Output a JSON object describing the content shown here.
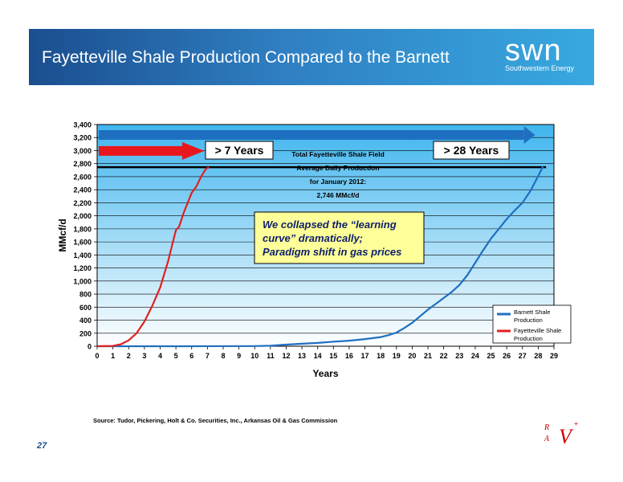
{
  "header": {
    "title": "Fayetteville Shale Production Compared to the Barnett",
    "logo_mark": "swn",
    "logo_sub": "Southwestern Energy"
  },
  "chart_data": {
    "type": "line",
    "xlabel": "Years",
    "ylabel": "MMcf/d",
    "xlim": [
      0,
      29
    ],
    "ylim": [
      0,
      3400
    ],
    "x_ticks": [
      0,
      1,
      2,
      3,
      4,
      5,
      6,
      7,
      8,
      9,
      10,
      11,
      12,
      13,
      14,
      15,
      16,
      17,
      18,
      19,
      20,
      21,
      22,
      23,
      24,
      25,
      26,
      27,
      28,
      29
    ],
    "y_ticks": [
      0,
      200,
      400,
      600,
      800,
      1000,
      1200,
      1400,
      1600,
      1800,
      2000,
      2200,
      2400,
      2600,
      2800,
      3000,
      3200,
      3400
    ],
    "y_tick_labels": [
      "0",
      "200",
      "400",
      "600",
      "800",
      "1,000",
      "1,200",
      "1,400",
      "1,600",
      "1,800",
      "2,000",
      "2,200",
      "2,400",
      "2,600",
      "2,800",
      "3,000",
      "3,200",
      "3,400"
    ],
    "grid": true,
    "legend_position": "bottom-right",
    "series": [
      {
        "name": "Barnett Shale Production",
        "color": "#1f6fc0",
        "points": [
          [
            0,
            0
          ],
          [
            6,
            0
          ],
          [
            10,
            3
          ],
          [
            11,
            8
          ],
          [
            12,
            25
          ],
          [
            13,
            38
          ],
          [
            14,
            50
          ],
          [
            15,
            70
          ],
          [
            16,
            85
          ],
          [
            17,
            110
          ],
          [
            18,
            140
          ],
          [
            18.5,
            170
          ],
          [
            19,
            210
          ],
          [
            19.5,
            280
          ],
          [
            20,
            360
          ],
          [
            20.5,
            460
          ],
          [
            21,
            560
          ],
          [
            21.5,
            650
          ],
          [
            22,
            740
          ],
          [
            22.5,
            830
          ],
          [
            23,
            940
          ],
          [
            23.5,
            1090
          ],
          [
            24,
            1280
          ],
          [
            24.5,
            1470
          ],
          [
            25,
            1650
          ],
          [
            25.5,
            1800
          ],
          [
            26,
            1950
          ],
          [
            26.5,
            2080
          ],
          [
            27,
            2200
          ],
          [
            27.5,
            2380
          ],
          [
            28,
            2610
          ],
          [
            28.3,
            2760
          ]
        ]
      },
      {
        "name": "Fayetteville Shale Production",
        "color": "#e02020",
        "points": [
          [
            0,
            0
          ],
          [
            1,
            5
          ],
          [
            1.5,
            30
          ],
          [
            2,
            90
          ],
          [
            2.5,
            200
          ],
          [
            3,
            380
          ],
          [
            3.5,
            620
          ],
          [
            4,
            900
          ],
          [
            4.5,
            1300
          ],
          [
            5,
            1780
          ],
          [
            5.2,
            1830
          ],
          [
            5.5,
            2050
          ],
          [
            6,
            2350
          ],
          [
            6.3,
            2450
          ],
          [
            6.6,
            2600
          ],
          [
            6.9,
            2720
          ],
          [
            7.1,
            2746
          ]
        ]
      }
    ],
    "reference_line_value": 2746,
    "annotations": {
      "box_7_years": "> 7 Years",
      "box_28_years": "> 28 Years",
      "total_lines": [
        "Total Fayetteville Shale Field",
        "Average Daily Production",
        "for January 2012:",
        "2,746 MMcf/d"
      ],
      "callout_lines": [
        "We collapsed the “learning",
        "curve” dramatically;",
        "Paradigm shift in gas prices"
      ]
    },
    "arrows": {
      "fayetteville_color": "#e8171b",
      "barnett_color": "#1f6fc0"
    },
    "plot_background": "#c8eafb",
    "callout_background": "#ffff99",
    "legend": [
      "Barnett Shale",
      "Production",
      "Fayetteville Shale",
      "Production"
    ]
  },
  "footer": {
    "source": "Source: Tudor, Pickering, Holt & Co. Securities, Inc., Arkansas Oil & Gas Commission",
    "page_number": "27",
    "logo_parts": [
      "R",
      "A",
      "V",
      "+"
    ]
  }
}
